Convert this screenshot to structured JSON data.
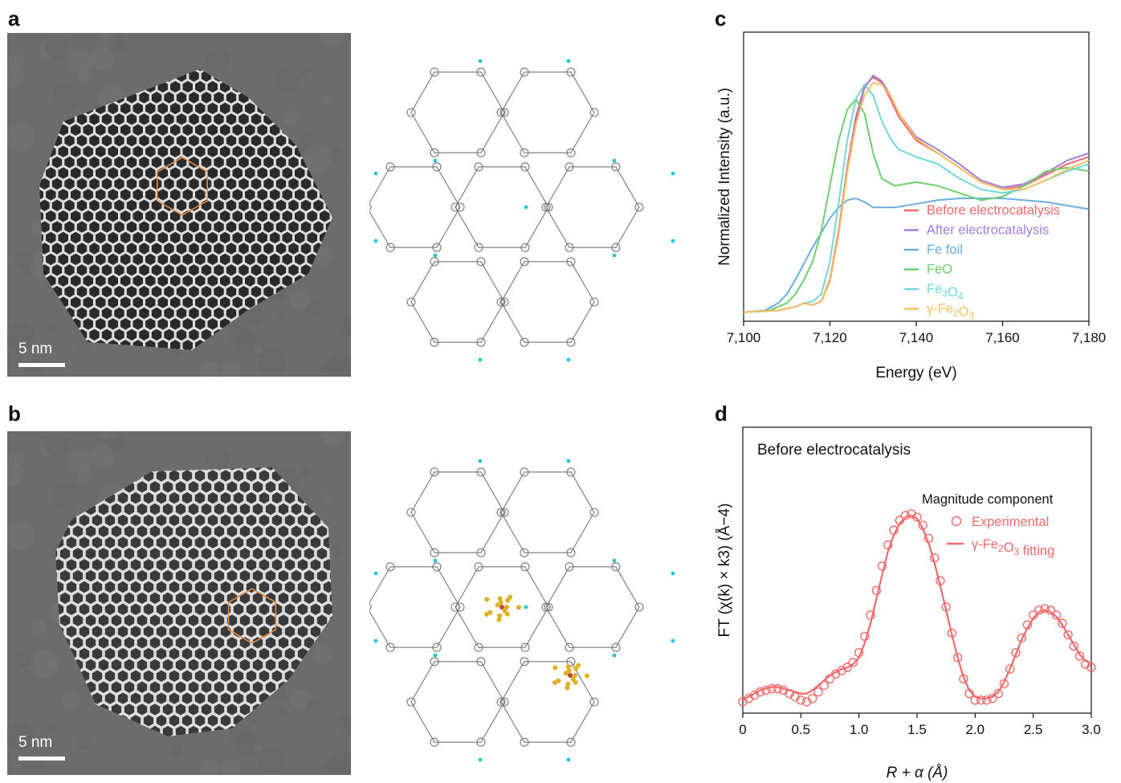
{
  "panels": {
    "a": {
      "letter": "a",
      "scale_label": "5 nm"
    },
    "b": {
      "letter": "b",
      "scale_label": "5 nm"
    },
    "c": {
      "letter": "c"
    },
    "d": {
      "letter": "d"
    }
  },
  "colors": {
    "before": "#f06a6a",
    "after": "#a07fd8",
    "fe_foil": "#6aaee0",
    "feo": "#6cd06c",
    "fe3o4": "#72d8d8",
    "gfe2o3": "#f8c060",
    "hexagon": "#e88a40",
    "framework": "#777777",
    "node": "#22c8d8",
    "guest": "#e0b020"
  },
  "chart_data": [
    {
      "panel": "c",
      "type": "line",
      "xlabel": "Energy (eV)",
      "ylabel": "Normalized Intensity (a.u.)",
      "xlim": [
        7100,
        7180
      ],
      "xticks": [
        7100,
        7120,
        7140,
        7160,
        7180
      ],
      "xtick_labels": [
        "7,100",
        "7,120",
        "7,140",
        "7,160",
        "7,180"
      ],
      "legend_position": "lower-right",
      "series": [
        {
          "name": "Before electrocatalysis",
          "color": "#f06a6a",
          "x": [
            7100,
            7108,
            7112,
            7114,
            7116,
            7118,
            7120,
            7122,
            7124,
            7126,
            7128,
            7130,
            7132,
            7134,
            7136,
            7140,
            7145,
            7150,
            7155,
            7160,
            7165,
            7170,
            7175,
            7180
          ],
          "y": [
            0.0,
            0.01,
            0.03,
            0.05,
            0.04,
            0.06,
            0.18,
            0.45,
            0.8,
            1.08,
            1.25,
            1.3,
            1.27,
            1.18,
            1.08,
            0.95,
            0.88,
            0.8,
            0.72,
            0.68,
            0.7,
            0.76,
            0.82,
            0.86
          ]
        },
        {
          "name": "After electrocatalysis",
          "color": "#a07fd8",
          "x": [
            7100,
            7108,
            7112,
            7114,
            7116,
            7118,
            7120,
            7122,
            7124,
            7126,
            7128,
            7130,
            7132,
            7134,
            7136,
            7140,
            7145,
            7150,
            7155,
            7160,
            7165,
            7170,
            7175,
            7180
          ],
          "y": [
            0.0,
            0.01,
            0.03,
            0.05,
            0.04,
            0.06,
            0.17,
            0.43,
            0.78,
            1.06,
            1.24,
            1.31,
            1.28,
            1.2,
            1.1,
            0.97,
            0.9,
            0.82,
            0.73,
            0.69,
            0.71,
            0.77,
            0.84,
            0.88
          ]
        },
        {
          "name": "Fe foil",
          "color": "#6aaee0",
          "x": [
            7100,
            7105,
            7108,
            7110,
            7112,
            7114,
            7116,
            7118,
            7120,
            7122,
            7124,
            7126,
            7128,
            7130,
            7135,
            7140,
            7145,
            7150,
            7160,
            7170,
            7180
          ],
          "y": [
            0.0,
            0.01,
            0.05,
            0.1,
            0.18,
            0.27,
            0.36,
            0.44,
            0.52,
            0.58,
            0.62,
            0.63,
            0.61,
            0.58,
            0.58,
            0.6,
            0.62,
            0.63,
            0.63,
            0.61,
            0.57
          ]
        },
        {
          "name": "FeO",
          "color": "#6cd06c",
          "x": [
            7100,
            7106,
            7110,
            7112,
            7114,
            7116,
            7118,
            7120,
            7122,
            7124,
            7126,
            7128,
            7130,
            7132,
            7135,
            7140,
            7145,
            7150,
            7155,
            7160,
            7165,
            7170,
            7175,
            7180
          ],
          "y": [
            0.0,
            0.01,
            0.05,
            0.1,
            0.18,
            0.28,
            0.45,
            0.7,
            0.95,
            1.12,
            1.18,
            1.1,
            0.88,
            0.74,
            0.7,
            0.72,
            0.7,
            0.66,
            0.62,
            0.64,
            0.7,
            0.78,
            0.8,
            0.78
          ]
        },
        {
          "name": "Fe3O4",
          "color": "#72d8d8",
          "x": [
            7100,
            7108,
            7112,
            7114,
            7116,
            7118,
            7120,
            7122,
            7124,
            7126,
            7128,
            7130,
            7132,
            7134,
            7136,
            7140,
            7145,
            7150,
            7155,
            7160,
            7165,
            7170,
            7175,
            7180
          ],
          "y": [
            0.0,
            0.01,
            0.03,
            0.05,
            0.06,
            0.1,
            0.28,
            0.6,
            0.95,
            1.18,
            1.26,
            1.2,
            1.06,
            0.96,
            0.9,
            0.86,
            0.82,
            0.74,
            0.68,
            0.66,
            0.68,
            0.73,
            0.78,
            0.82
          ]
        },
        {
          "name": "γ-Fe2O3",
          "color": "#f8c060",
          "x": [
            7100,
            7108,
            7112,
            7114,
            7116,
            7118,
            7120,
            7122,
            7124,
            7126,
            7128,
            7130,
            7132,
            7134,
            7136,
            7140,
            7145,
            7150,
            7155,
            7160,
            7165,
            7170,
            7175,
            7180
          ],
          "y": [
            0.0,
            0.01,
            0.03,
            0.05,
            0.04,
            0.06,
            0.17,
            0.43,
            0.77,
            1.04,
            1.2,
            1.27,
            1.26,
            1.2,
            1.1,
            0.96,
            0.88,
            0.8,
            0.72,
            0.68,
            0.68,
            0.73,
            0.79,
            0.84
          ]
        }
      ],
      "legend_labels": [
        {
          "main": "Before electrocatalysis",
          "sub": "",
          "tail": ""
        },
        {
          "main": "After electrocatalysis",
          "sub": "",
          "tail": ""
        },
        {
          "main": "Fe foil",
          "sub": "",
          "tail": ""
        },
        {
          "main": "FeO",
          "sub": "",
          "tail": ""
        },
        {
          "main": "Fe",
          "sub": "3",
          "tail": "O",
          "sub2": "4"
        },
        {
          "main": "γ-Fe",
          "sub": "2",
          "tail": "O",
          "sub2": "3"
        }
      ]
    },
    {
      "panel": "d",
      "type": "line",
      "title": "Before electrocatalysis",
      "xlabel": "R + α (Å)",
      "ylabel": "FT (χ(k) × k3) (Å−4)",
      "xlim": [
        0,
        3.0
      ],
      "xticks": [
        0,
        0.5,
        1.0,
        1.5,
        2.0,
        2.5,
        3.0
      ],
      "xtick_labels": [
        "0",
        "0.5",
        "1.0",
        "1.5",
        "2.0",
        "2.5",
        "3.0"
      ],
      "legend_title": "Magnitude component",
      "legend_position": "upper-right",
      "series": [
        {
          "name": "Experimental",
          "marker": "open-circle",
          "color": "#f06a6a",
          "x": [
            0.0,
            0.05,
            0.1,
            0.15,
            0.2,
            0.25,
            0.3,
            0.35,
            0.4,
            0.45,
            0.5,
            0.55,
            0.6,
            0.65,
            0.7,
            0.75,
            0.8,
            0.85,
            0.9,
            0.95,
            1.0,
            1.05,
            1.1,
            1.15,
            1.2,
            1.25,
            1.3,
            1.35,
            1.4,
            1.45,
            1.5,
            1.55,
            1.6,
            1.65,
            1.7,
            1.75,
            1.8,
            1.85,
            1.9,
            1.95,
            2.0,
            2.05,
            2.1,
            2.15,
            2.2,
            2.25,
            2.3,
            2.35,
            2.4,
            2.45,
            2.5,
            2.55,
            2.6,
            2.65,
            2.7,
            2.75,
            2.8,
            2.85,
            2.9,
            2.95,
            3.0
          ],
          "y": [
            0.02,
            0.04,
            0.06,
            0.08,
            0.09,
            0.1,
            0.1,
            0.09,
            0.07,
            0.05,
            0.03,
            0.02,
            0.04,
            0.08,
            0.12,
            0.16,
            0.19,
            0.21,
            0.23,
            0.26,
            0.32,
            0.42,
            0.55,
            0.7,
            0.85,
            0.98,
            1.07,
            1.13,
            1.16,
            1.17,
            1.15,
            1.1,
            1.02,
            0.9,
            0.76,
            0.6,
            0.44,
            0.29,
            0.16,
            0.07,
            0.03,
            0.03,
            0.03,
            0.04,
            0.07,
            0.13,
            0.22,
            0.32,
            0.41,
            0.49,
            0.55,
            0.58,
            0.59,
            0.58,
            0.55,
            0.5,
            0.43,
            0.36,
            0.3,
            0.25,
            0.23
          ]
        },
        {
          "name": "γ-Fe2O3 fitting",
          "marker": "line",
          "color": "#f06a6a",
          "x": [
            0.0,
            0.05,
            0.1,
            0.15,
            0.2,
            0.25,
            0.3,
            0.35,
            0.4,
            0.45,
            0.5,
            0.55,
            0.6,
            0.65,
            0.7,
            0.75,
            0.8,
            0.85,
            0.9,
            0.95,
            1.0,
            1.05,
            1.1,
            1.15,
            1.2,
            1.25,
            1.3,
            1.35,
            1.4,
            1.45,
            1.5,
            1.55,
            1.6,
            1.65,
            1.7,
            1.75,
            1.8,
            1.85,
            1.9,
            1.95,
            2.0,
            2.05,
            2.1,
            2.15,
            2.2,
            2.25,
            2.3,
            2.35,
            2.4,
            2.45,
            2.5,
            2.55,
            2.6,
            2.65,
            2.7,
            2.75,
            2.8,
            2.85,
            2.9,
            2.95,
            3.0
          ],
          "y": [
            0.03,
            0.05,
            0.07,
            0.09,
            0.1,
            0.11,
            0.11,
            0.1,
            0.09,
            0.08,
            0.07,
            0.07,
            0.09,
            0.12,
            0.15,
            0.18,
            0.2,
            0.22,
            0.23,
            0.25,
            0.29,
            0.38,
            0.5,
            0.65,
            0.8,
            0.94,
            1.04,
            1.11,
            1.15,
            1.16,
            1.14,
            1.08,
            0.99,
            0.87,
            0.73,
            0.58,
            0.43,
            0.29,
            0.17,
            0.09,
            0.05,
            0.04,
            0.04,
            0.05,
            0.08,
            0.14,
            0.22,
            0.31,
            0.4,
            0.47,
            0.53,
            0.57,
            0.58,
            0.57,
            0.54,
            0.49,
            0.43,
            0.37,
            0.31,
            0.27,
            0.25
          ]
        }
      ],
      "legend_labels": [
        {
          "main": "Experimental",
          "sub": "",
          "tail": ""
        },
        {
          "main": "γ-Fe",
          "sub": "2",
          "tail": "O",
          "sub2": "3",
          "tail2": " fitting"
        }
      ]
    }
  ]
}
